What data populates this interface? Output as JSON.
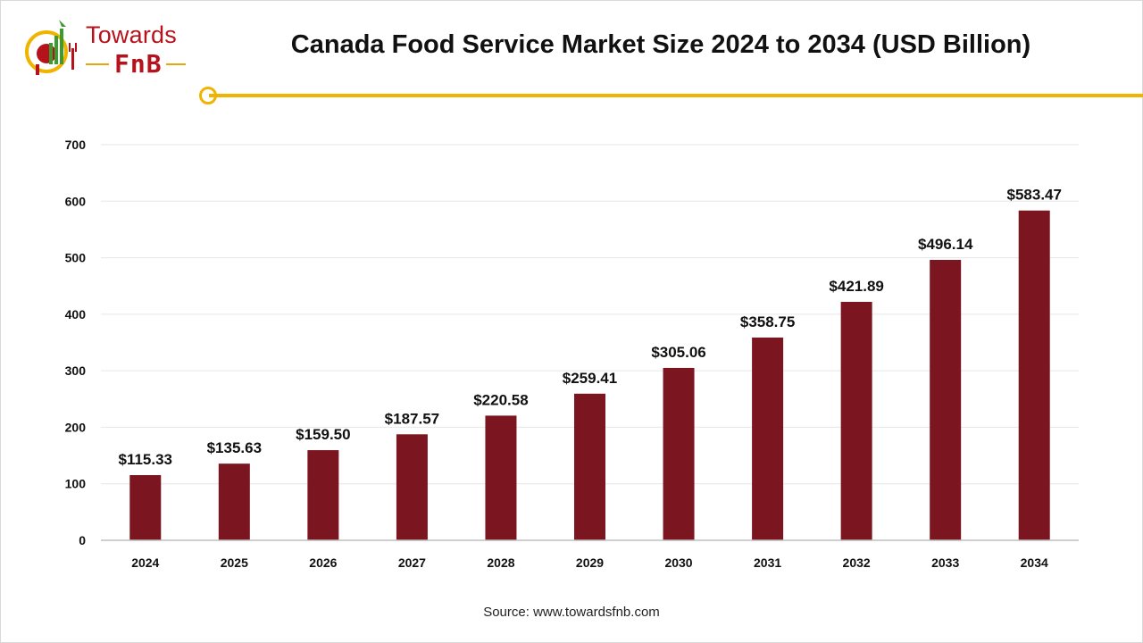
{
  "brand": {
    "name_line1": "Towards",
    "name_line2": "FnB",
    "accent_color": "#f0b400",
    "brand_color": "#b5121b"
  },
  "source": "Source: www.towardsfnb.com",
  "chart_data": {
    "type": "bar",
    "title": "Canada Food Service Market Size 2024 to 2034 (USD Billion)",
    "categories": [
      "2024",
      "2025",
      "2026",
      "2027",
      "2028",
      "2029",
      "2030",
      "2031",
      "2032",
      "2033",
      "2034"
    ],
    "values": [
      115.33,
      135.63,
      159.5,
      187.57,
      220.58,
      259.41,
      305.06,
      358.75,
      421.89,
      496.14,
      583.47
    ],
    "data_labels": [
      "$115.33",
      "$135.63",
      "$159.50",
      "$187.57",
      "$220.58",
      "$259.41",
      "$305.06",
      "$358.75",
      "$421.89",
      "$496.14",
      "$583.47"
    ],
    "xlabel": "",
    "ylabel": "",
    "ylim": [
      0,
      700
    ],
    "yticks": [
      0,
      100,
      200,
      300,
      400,
      500,
      600,
      700
    ],
    "grid": true,
    "bar_color": "#7b1520"
  }
}
